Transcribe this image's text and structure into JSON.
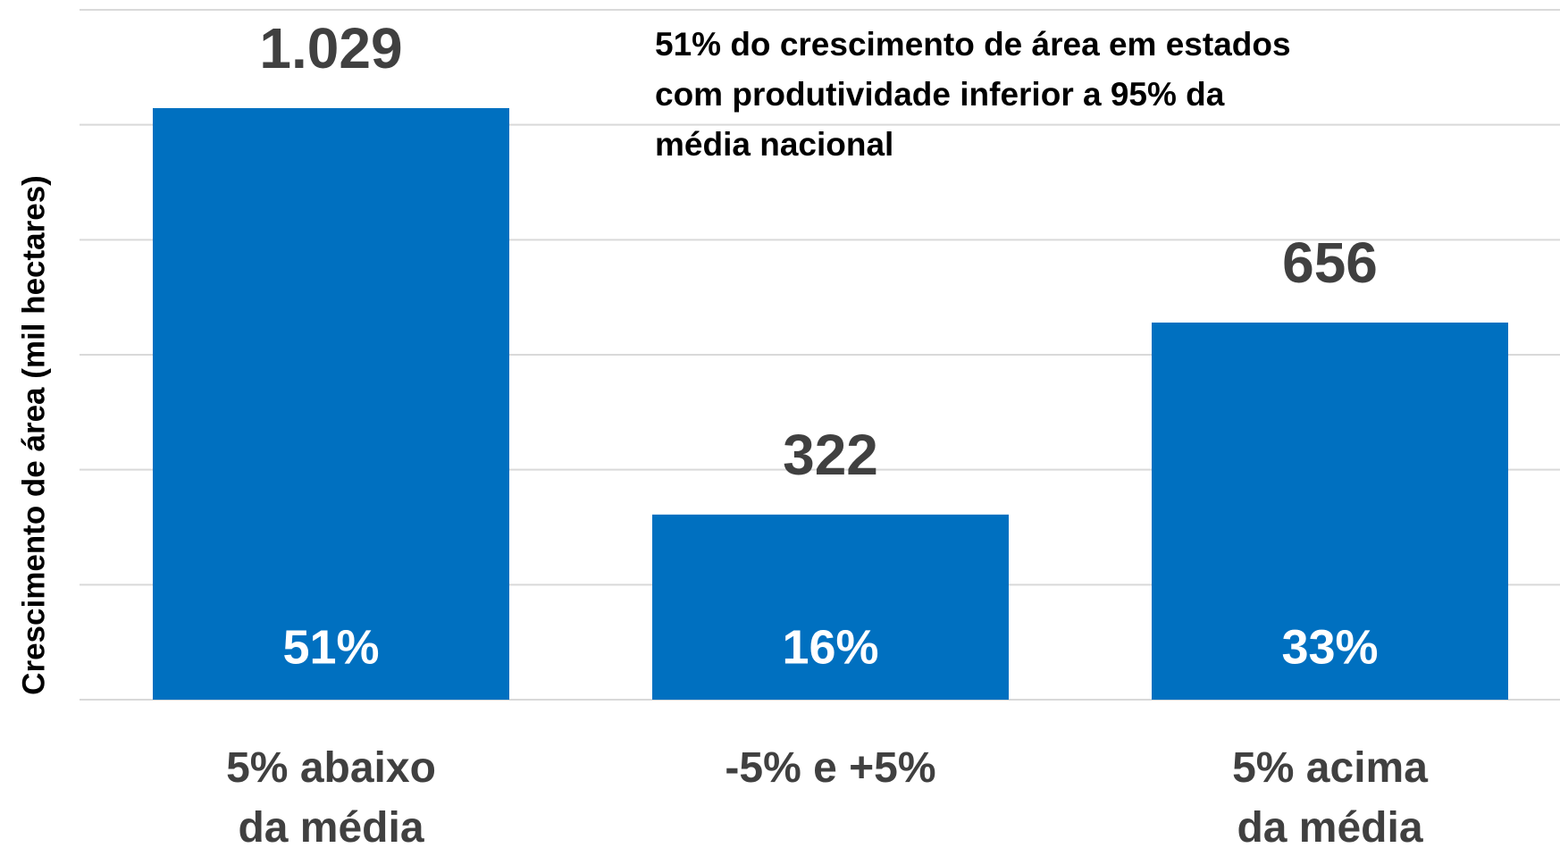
{
  "chart_data": {
    "type": "bar",
    "y_label": "Crescimento de área (mil hectares)",
    "annotation": "51% do crescimento de área em estados\ncom produtividade inferior a 95% da\nmédia nacional",
    "categories": [
      "5% abaixo\nda média",
      "-5% e +5%",
      "5% acima\nda média"
    ],
    "values": [
      1029,
      322,
      656
    ],
    "value_labels": [
      "1.029",
      "322",
      "656"
    ],
    "share_values": [
      51,
      16,
      33
    ],
    "share_labels": [
      "51%",
      "16%",
      "33%"
    ],
    "color": "#0070c0",
    "ylim": [
      0,
      1200
    ],
    "yticks": [
      0,
      200,
      400,
      600,
      800,
      1000,
      1200
    ],
    "grid": true
  }
}
